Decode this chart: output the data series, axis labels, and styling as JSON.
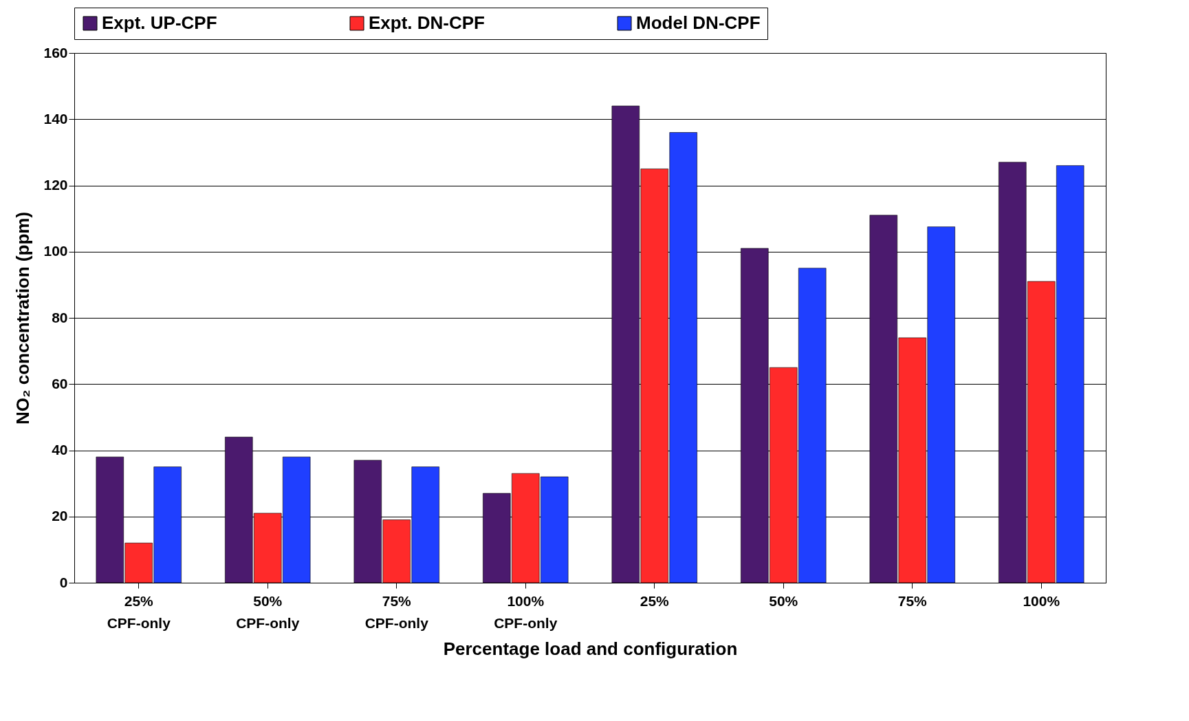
{
  "chart_data": {
    "type": "bar",
    "xlabel": "Percentage load and configuration",
    "ylabel": "NO₂ concentration (ppm)",
    "categories": [
      "25% CPF-only",
      "50% CPF-only",
      "75% CPF-only",
      "100% CPF-only",
      "25%",
      "50%",
      "75%",
      "100%"
    ],
    "series": [
      {
        "name": "Expt. UP-CPF",
        "color": "#4b1a6e",
        "values": [
          38,
          44,
          37,
          27,
          144,
          101,
          111,
          127
        ]
      },
      {
        "name": "Expt. DN-CPF",
        "color": "#ff2a2a",
        "values": [
          12,
          21,
          19,
          33,
          125,
          65,
          74,
          91
        ]
      },
      {
        "name": "Model DN-CPF",
        "color": "#1f3fff",
        "values": [
          35,
          38,
          35,
          32,
          136,
          95,
          107.5,
          126
        ]
      }
    ],
    "ylim": [
      0,
      160
    ],
    "yticks": [
      0,
      20,
      40,
      60,
      80,
      100,
      120,
      140,
      160
    ],
    "grid": "y",
    "legend": "top"
  }
}
